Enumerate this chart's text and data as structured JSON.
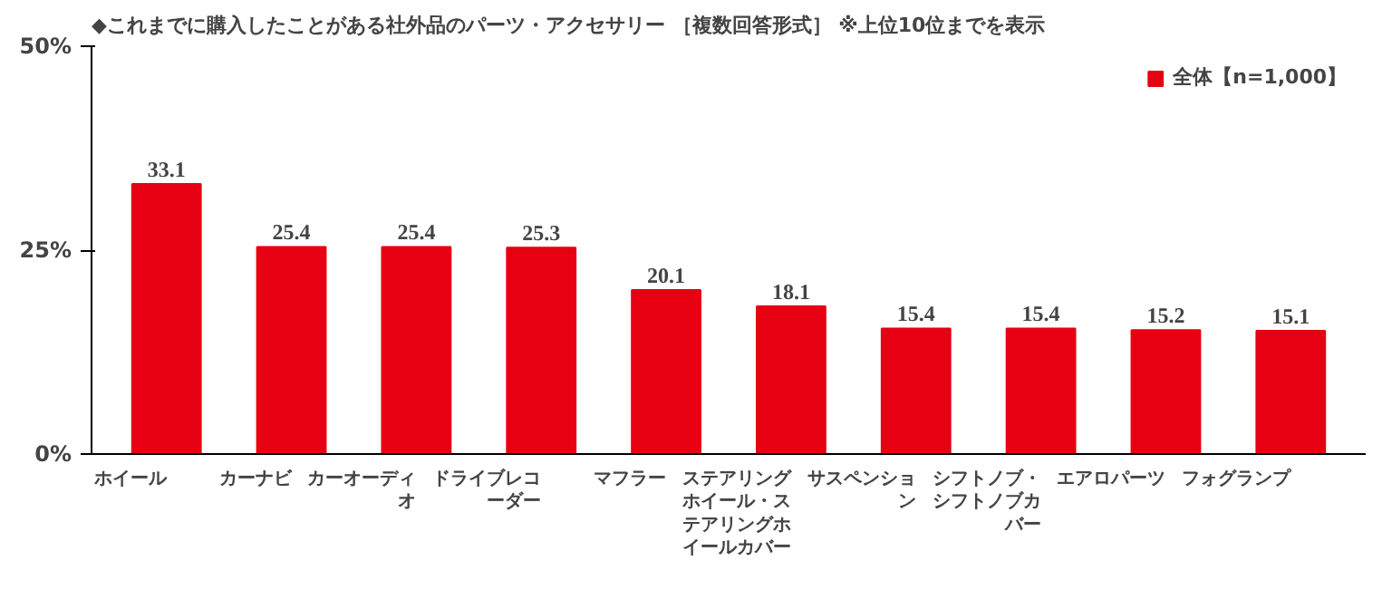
{
  "chart_data": {
    "type": "bar",
    "title": "◆これまでに購入したことがある社外品のパーツ・アクセサリー ［複数回答形式］ ※上位10位までを表示",
    "categories": [
      "ホイール",
      "カーナビ",
      "カーオーディオ",
      "ドライブレコーダー",
      "マフラー",
      "ステアリングホイール・ステアリングホイールカバー",
      "サスペンション",
      "シフトノブ・シフトノブカバー",
      "エアロパーツ",
      "フォグランプ"
    ],
    "series": [
      {
        "name": "全体【n=1,000】",
        "color": "#e60012",
        "values": [
          33.1,
          25.4,
          25.4,
          25.3,
          20.1,
          18.1,
          15.4,
          15.4,
          15.2,
          15.1
        ]
      }
    ],
    "ylim": [
      0,
      50
    ],
    "yticks": [
      {
        "value": 0,
        "label": "0%"
      },
      {
        "value": 25,
        "label": "25%"
      },
      {
        "value": 50,
        "label": "50%"
      }
    ],
    "data_labels": true,
    "legend": "top right",
    "grid": false
  }
}
